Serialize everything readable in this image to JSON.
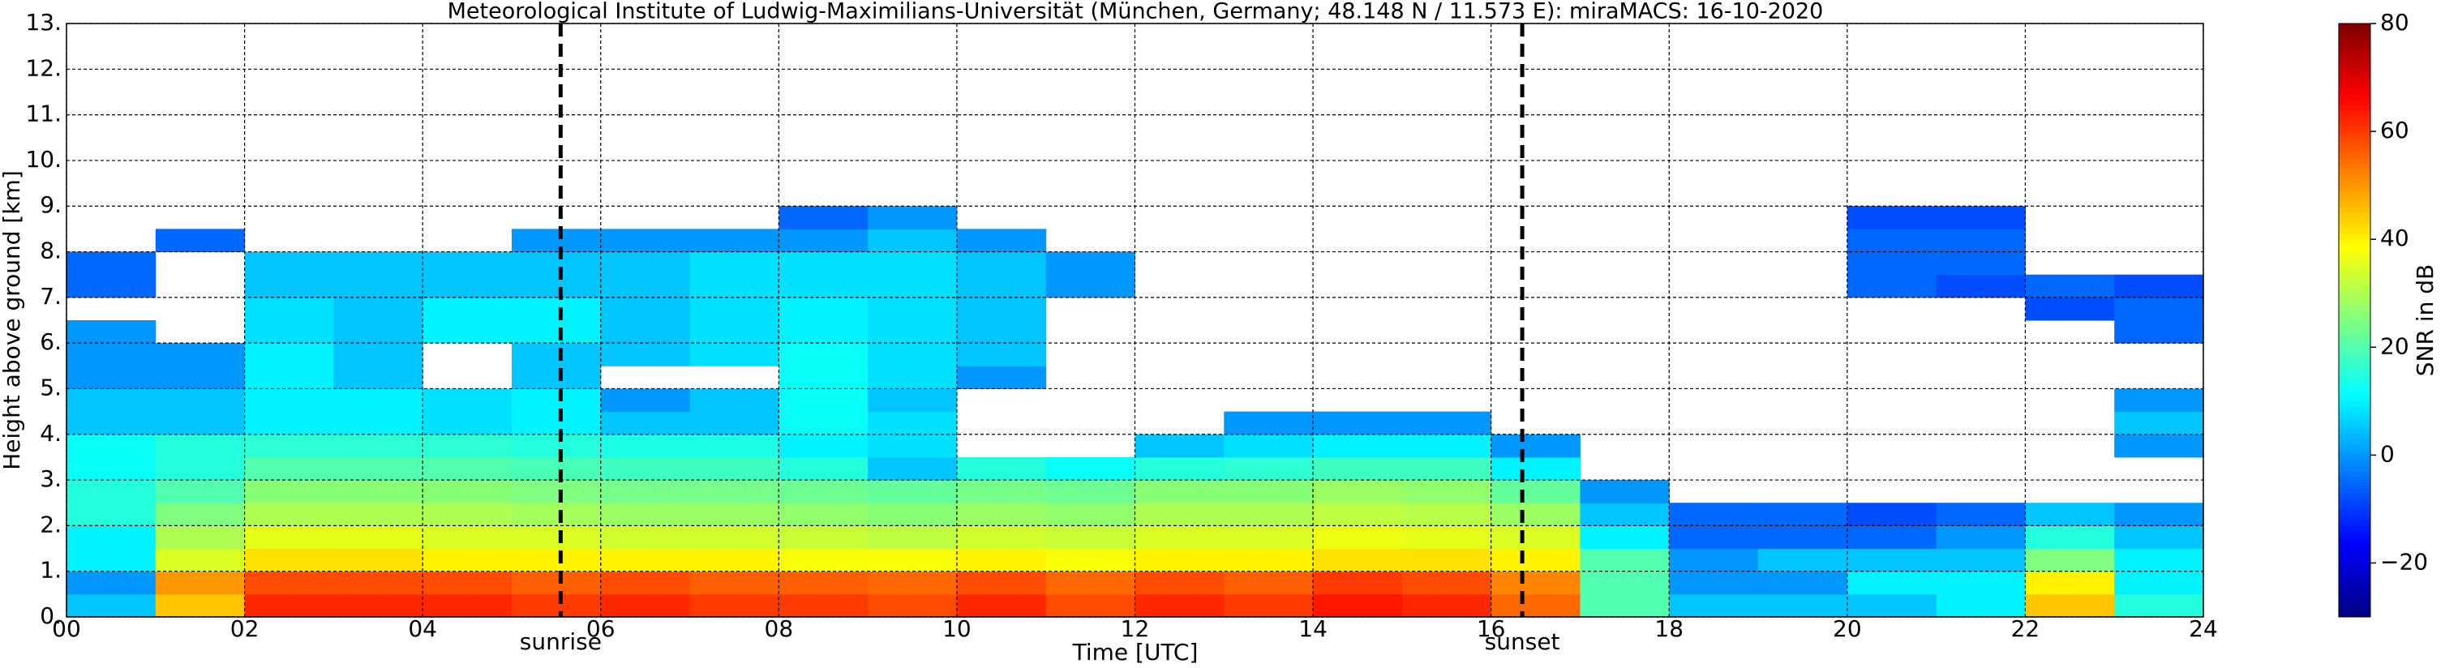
{
  "chart_data": {
    "type": "heatmap",
    "title": "Meteorological Institute of Ludwig-Maximilians-Universität (München, Germany; 48.148 N / 11.573 E):    miraMACS: 16-10-2020",
    "x_label": "Time [UTC]",
    "y_label": "Height above ground [km]",
    "colorbar_label": "SNR in dB",
    "colormap": "jet",
    "grid": true,
    "xlim": [
      0,
      24
    ],
    "ylim": [
      0,
      13
    ],
    "clim": [
      -30,
      80
    ],
    "xticks": [
      {
        "value": 0,
        "label": "00"
      },
      {
        "value": 2,
        "label": "02"
      },
      {
        "value": 4,
        "label": "04"
      },
      {
        "value": 6,
        "label": "06"
      },
      {
        "value": 8,
        "label": "08"
      },
      10,
      12,
      14,
      16,
      18,
      20,
      22,
      24
    ],
    "yticks": [
      {
        "value": 0,
        "label": "0."
      },
      {
        "value": 1,
        "label": "1."
      },
      {
        "value": 2,
        "label": "2."
      },
      {
        "value": 3,
        "label": "3."
      },
      {
        "value": 4,
        "label": "4."
      },
      {
        "value": 5,
        "label": "5."
      },
      {
        "value": 6,
        "label": "6."
      },
      {
        "value": 7,
        "label": "7."
      },
      {
        "value": 8,
        "label": "8."
      },
      {
        "value": 9,
        "label": "9."
      },
      {
        "value": 10,
        "label": "10."
      },
      {
        "value": 11,
        "label": "11."
      },
      {
        "value": 12,
        "label": "12."
      },
      {
        "value": 13,
        "label": "13."
      }
    ],
    "cticks": [
      {
        "value": -20,
        "label": "−20"
      },
      0,
      20,
      40,
      60,
      80
    ],
    "markers": [
      {
        "label": "sunrise",
        "x": 5.55
      },
      {
        "label": "sunset",
        "x": 16.35
      }
    ],
    "x_edges": [
      0,
      1,
      2,
      3,
      4,
      5,
      6,
      7,
      8,
      9,
      10,
      11,
      12,
      13,
      14,
      15,
      16,
      17,
      18,
      19,
      20,
      21,
      22,
      23,
      24
    ],
    "y_edges": [
      0,
      0.5,
      1,
      1.5,
      2,
      2.5,
      3,
      3.5,
      4,
      4.5,
      5,
      5.5,
      6,
      6.5,
      7,
      7.5,
      8,
      8.5,
      9
    ],
    "z": [
      [
        5,
        45,
        62,
        62,
        62,
        60,
        62,
        60,
        60,
        58,
        62,
        58,
        62,
        60,
        64,
        62,
        55,
        20,
        5,
        5,
        5,
        10,
        45,
        15
      ],
      [
        0,
        50,
        58,
        58,
        58,
        56,
        58,
        56,
        56,
        55,
        58,
        55,
        58,
        56,
        60,
        58,
        52,
        20,
        0,
        0,
        10,
        10,
        40,
        10
      ],
      [
        10,
        35,
        42,
        42,
        40,
        40,
        40,
        40,
        38,
        38,
        40,
        38,
        40,
        40,
        42,
        42,
        40,
        20,
        0,
        5,
        5,
        5,
        25,
        10
      ],
      [
        10,
        30,
        36,
        36,
        35,
        35,
        34,
        34,
        33,
        32,
        34,
        33,
        35,
        35,
        37,
        36,
        35,
        10,
        -5,
        -5,
        -5,
        0,
        15,
        5
      ],
      [
        15,
        25,
        30,
        30,
        30,
        29,
        28,
        28,
        27,
        26,
        28,
        27,
        30,
        30,
        32,
        31,
        28,
        5,
        -5,
        -5,
        -8,
        -5,
        5,
        0
      ],
      [
        15,
        20,
        26,
        26,
        26,
        25,
        24,
        24,
        23,
        22,
        24,
        23,
        26,
        26,
        28,
        27,
        22,
        0,
        null,
        null,
        null,
        null,
        null,
        null
      ],
      [
        12,
        15,
        20,
        20,
        20,
        19,
        18,
        18,
        15,
        5,
        15,
        12,
        15,
        16,
        18,
        18,
        10,
        null,
        null,
        null,
        null,
        null,
        null,
        null
      ],
      [
        12,
        15,
        16,
        16,
        16,
        15,
        14,
        14,
        10,
        8,
        null,
        null,
        5,
        8,
        10,
        10,
        0,
        null,
        null,
        null,
        null,
        null,
        null,
        0
      ],
      [
        5,
        5,
        10,
        10,
        8,
        10,
        5,
        5,
        12,
        8,
        null,
        null,
        null,
        0,
        0,
        0,
        null,
        null,
        null,
        null,
        null,
        null,
        null,
        5
      ],
      [
        5,
        5,
        10,
        10,
        8,
        10,
        0,
        5,
        12,
        5,
        null,
        null,
        null,
        null,
        null,
        null,
        null,
        null,
        null,
        null,
        null,
        null,
        null,
        0
      ],
      [
        0,
        0,
        10,
        5,
        null,
        5,
        null,
        null,
        12,
        8,
        0,
        null,
        null,
        null,
        null,
        null,
        null,
        null,
        null,
        null,
        null,
        null,
        null,
        null
      ],
      [
        0,
        0,
        10,
        5,
        null,
        5,
        5,
        8,
        12,
        8,
        5,
        null,
        null,
        null,
        null,
        null,
        null,
        null,
        null,
        null,
        null,
        null,
        null,
        null
      ],
      [
        0,
        null,
        8,
        5,
        10,
        10,
        5,
        8,
        10,
        8,
        5,
        null,
        null,
        null,
        null,
        null,
        null,
        null,
        null,
        null,
        null,
        null,
        null,
        -5
      ],
      [
        null,
        null,
        8,
        5,
        10,
        10,
        5,
        8,
        10,
        8,
        5,
        null,
        null,
        null,
        null,
        null,
        null,
        null,
        null,
        null,
        null,
        null,
        -8,
        -5
      ],
      [
        -5,
        null,
        5,
        5,
        5,
        5,
        5,
        8,
        8,
        8,
        5,
        0,
        null,
        null,
        null,
        null,
        null,
        null,
        null,
        null,
        -5,
        -8,
        -5,
        -8
      ],
      [
        -5,
        null,
        5,
        5,
        5,
        5,
        5,
        8,
        8,
        8,
        5,
        0,
        null,
        null,
        null,
        null,
        null,
        null,
        null,
        null,
        -5,
        -5,
        null,
        null
      ],
      [
        null,
        -5,
        null,
        null,
        null,
        0,
        0,
        0,
        0,
        5,
        0,
        null,
        null,
        null,
        null,
        null,
        null,
        null,
        null,
        null,
        -5,
        -5,
        null,
        null
      ],
      [
        null,
        null,
        null,
        null,
        null,
        null,
        null,
        null,
        -5,
        0,
        null,
        null,
        null,
        null,
        null,
        null,
        null,
        null,
        null,
        null,
        -8,
        -8,
        null,
        null
      ]
    ]
  }
}
